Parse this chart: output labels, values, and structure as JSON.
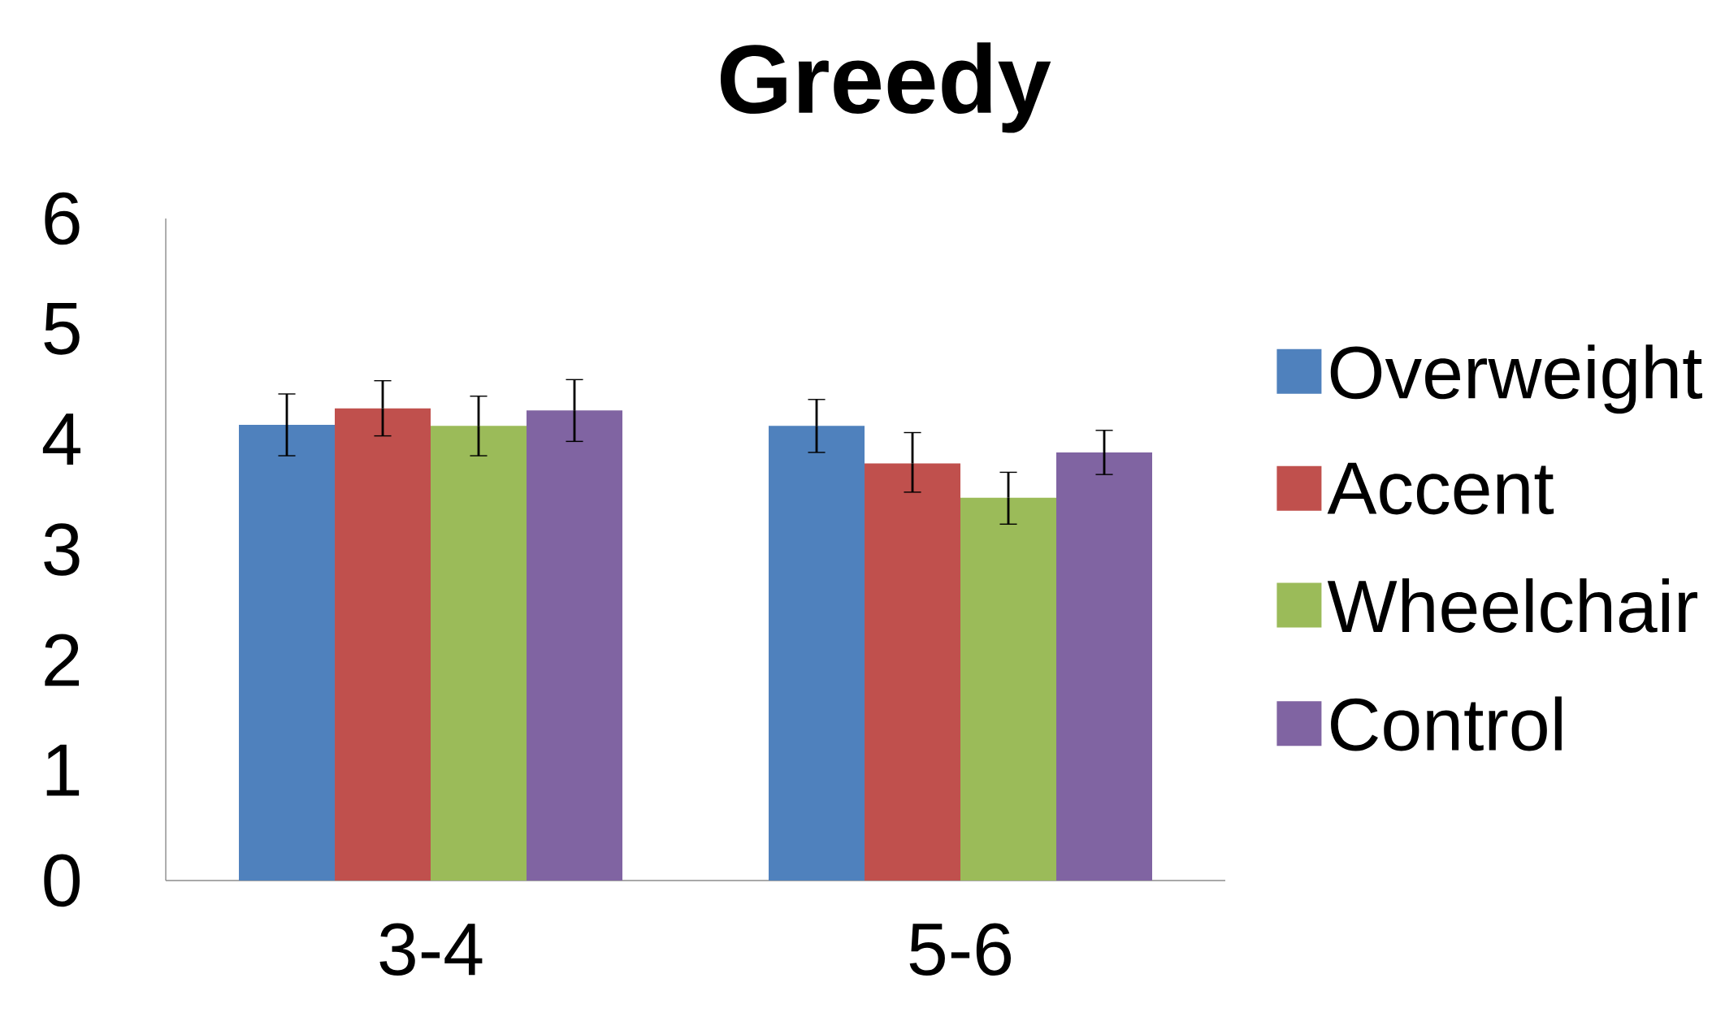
{
  "chart_data": {
    "type": "bar",
    "title": "Greedy",
    "categories": [
      "3-4",
      "5-6"
    ],
    "series": [
      {
        "name": "Overweight",
        "color": "#4f81bd",
        "values": [
          4.13,
          4.12
        ],
        "errors": [
          [
            3.85,
            4.41
          ],
          [
            3.88,
            4.36
          ]
        ]
      },
      {
        "name": "Accent",
        "color": "#c0504d",
        "values": [
          4.28,
          3.78
        ],
        "errors": [
          [
            4.03,
            4.53
          ],
          [
            3.52,
            4.06
          ]
        ]
      },
      {
        "name": "Wheelchair",
        "color": "#9bbb59",
        "values": [
          4.12,
          3.47
        ],
        "errors": [
          [
            3.85,
            4.39
          ],
          [
            3.23,
            3.7
          ]
        ]
      },
      {
        "name": "Control",
        "color": "#8064a2",
        "values": [
          4.26,
          3.88
        ],
        "errors": [
          [
            3.98,
            4.54
          ],
          [
            3.68,
            4.08
          ]
        ]
      }
    ],
    "ylim": [
      0,
      6
    ],
    "yticks": [
      0,
      1,
      2,
      3,
      4,
      5,
      6
    ],
    "grid": false,
    "legend": "right"
  }
}
